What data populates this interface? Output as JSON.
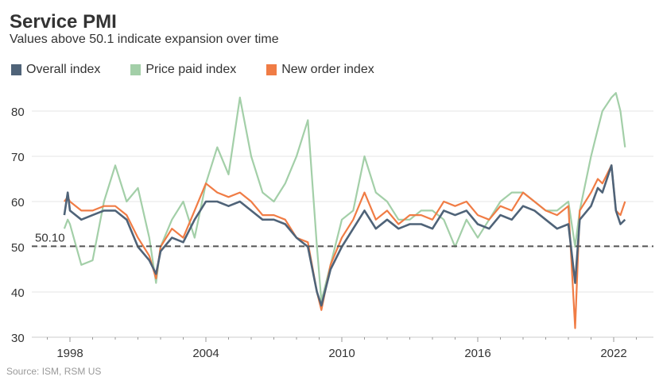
{
  "chart_data": {
    "type": "line",
    "title": "Service PMI",
    "subtitle": "Values above 50.1 indicate expansion over time",
    "source": "Source: ISM, RSM US",
    "xlabel": "",
    "ylabel": "",
    "xlim": [
      1996.8,
      2024.3
    ],
    "ylim": [
      29,
      86
    ],
    "x_ticks": [
      "1998",
      "2004",
      "2010",
      "2016",
      "2022"
    ],
    "y_ticks": [
      "30",
      "40",
      "50",
      "60",
      "70",
      "80"
    ],
    "reference_line": {
      "value": 50.1,
      "label": "50.10"
    },
    "x": [
      1997.75,
      1997.9,
      1998,
      1998.5,
      1999,
      1999.5,
      2000,
      2000.5,
      2001,
      2001.5,
      2001.8,
      2002,
      2002.5,
      2003,
      2003.5,
      2004,
      2004.5,
      2005,
      2005.5,
      2006,
      2006.5,
      2007,
      2007.5,
      2008,
      2008.5,
      2008.9,
      2009.1,
      2009.5,
      2010,
      2010.5,
      2011,
      2011.5,
      2012,
      2012.5,
      2013,
      2013.5,
      2014,
      2014.5,
      2015,
      2015.5,
      2016,
      2016.5,
      2017,
      2017.5,
      2018,
      2018.5,
      2019,
      2019.5,
      2020,
      2020.3,
      2020.5,
      2021,
      2021.3,
      2021.5,
      2021.9,
      2022.1,
      2022.3,
      2022.5
    ],
    "series": [
      {
        "name": "Price paid index",
        "color": "#a3cfa8",
        "values": [
          54,
          56,
          55,
          46,
          47,
          60,
          68,
          60,
          63,
          52,
          42,
          50,
          56,
          60,
          52,
          64,
          72,
          66,
          83,
          70,
          62,
          60,
          64,
          70,
          78,
          50,
          38,
          46,
          56,
          58,
          70,
          62,
          60,
          56,
          56,
          58,
          58,
          56,
          50,
          56,
          52,
          56,
          60,
          62,
          62,
          60,
          58,
          58,
          60,
          50,
          58,
          70,
          76,
          80,
          83,
          84,
          80,
          72
        ]
      },
      {
        "name": "New order index",
        "color": "#f07c45",
        "values": [
          60,
          61,
          60,
          58,
          58,
          59,
          59,
          57,
          52,
          48,
          43,
          50,
          54,
          52,
          58,
          64,
          62,
          61,
          62,
          60,
          57,
          57,
          56,
          52,
          51,
          40,
          36,
          46,
          52,
          56,
          62,
          56,
          58,
          55,
          57,
          57,
          56,
          60,
          59,
          60,
          57,
          56,
          59,
          58,
          62,
          60,
          58,
          57,
          59,
          32,
          58,
          62,
          65,
          64,
          68,
          58,
          57,
          60
        ]
      },
      {
        "name": "Overall index",
        "color": "#4f6378",
        "values": [
          57,
          62,
          58,
          56,
          57,
          58,
          58,
          56,
          50,
          47,
          44,
          49,
          52,
          51,
          56,
          60,
          60,
          59,
          60,
          58,
          56,
          56,
          55,
          52,
          50,
          40,
          37,
          45,
          50,
          54,
          58,
          54,
          56,
          54,
          55,
          55,
          54,
          58,
          57,
          58,
          55,
          54,
          57,
          56,
          59,
          58,
          56,
          54,
          55,
          42,
          56,
          59,
          63,
          62,
          68,
          58,
          55,
          56
        ]
      }
    ],
    "legend": [
      "Overall index",
      "Price paid index",
      "New order index"
    ],
    "legend_position": "top-left",
    "grid": true
  }
}
